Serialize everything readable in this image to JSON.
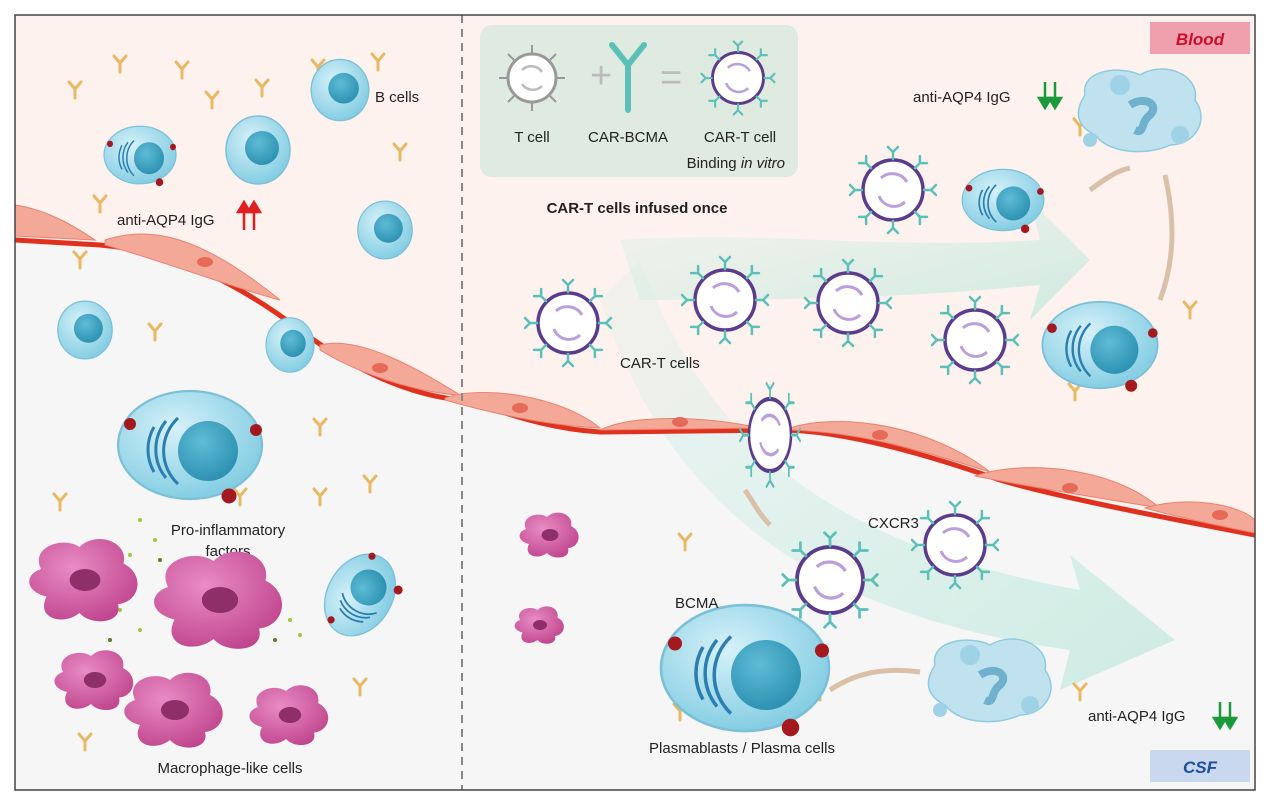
{
  "regions": {
    "blood": "Blood",
    "csf": "CSF"
  },
  "legend": {
    "t_cell": "T cell",
    "car_bcma": "CAR-BCMA",
    "car_t_cell": "CAR-T cell",
    "binding_prefix": "Binding ",
    "binding_italic": "in vitro",
    "plus": "+",
    "equals": "="
  },
  "labels": {
    "b_cells": "B cells",
    "anti_aqp4_left": "anti-AQP4 IgG",
    "pro_inflammatory_1": "Pro-inflammatory",
    "pro_inflammatory_2": "factors",
    "macrophage": "Macrophage-like cells",
    "infused": "CAR-T cells infused once",
    "car_t_cells": "CAR-T cells",
    "anti_aqp4_top": "anti-AQP4 IgG",
    "cxcr3": "CXCR3",
    "bcma": "BCMA",
    "plasma": "Plasmablasts / Plasma cells",
    "anti_aqp4_bottom": "anti-AQP4 IgG"
  },
  "arrows": {
    "left": "up-up",
    "top_right": "down-down",
    "bottom_right": "down-down"
  },
  "colors": {
    "blood_bg": "#fdf2ee",
    "csf_bg": "#f6f6f6",
    "blood_badge": "#f0a0ac",
    "blood_text": "#c8102e",
    "csf_badge": "#c9d8ee",
    "csf_text": "#1f4e9c",
    "vessel": "#e0301e",
    "endothelial": "#f4a898",
    "b_cell": "#a8dcec",
    "nucleus": "#3aa0c0",
    "car_t": "#5b3b8c",
    "receptor": "#5cc0b8",
    "antibody": "#e9b864",
    "macrophage": "#cc5aa0",
    "up_arrow": "#e02020",
    "down_arrow": "#1a9a3a"
  }
}
